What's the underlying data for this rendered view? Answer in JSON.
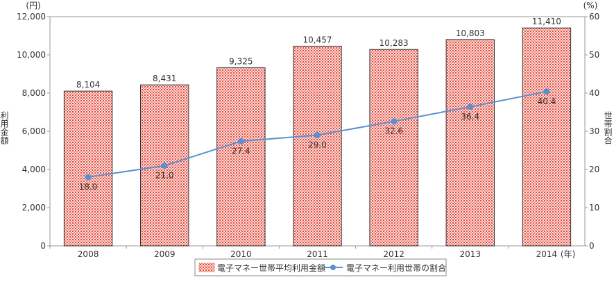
{
  "chart_data": {
    "type": "bar+line",
    "categories": [
      "2008",
      "2009",
      "2010",
      "2011",
      "2012",
      "2013",
      "2014"
    ],
    "x_unit_suffix": "(年)",
    "series": [
      {
        "name": "電子マネー世帯平均利用金額",
        "type": "bar",
        "axis": "left",
        "values": [
          8104,
          8431,
          9325,
          10457,
          10283,
          10803,
          11410
        ],
        "labels": [
          "8,104",
          "8,431",
          "9,325",
          "10,457",
          "10,283",
          "10,803",
          "11,410"
        ],
        "color": "#e8463a"
      },
      {
        "name": "電子マネー利用世帯の割合",
        "type": "line",
        "axis": "right",
        "values": [
          18.0,
          21.0,
          27.4,
          29.0,
          32.6,
          36.4,
          40.4
        ],
        "labels": [
          "18.0",
          "21.0",
          "27.4",
          "29.0",
          "32.6",
          "36.4",
          "40.4"
        ],
        "color": "#5b8fd0"
      }
    ],
    "y_left": {
      "label": "利用金額",
      "unit": "(円)",
      "range": [
        0,
        12000
      ],
      "ticks": [
        "0",
        "2,000",
        "4,000",
        "6,000",
        "8,000",
        "10,000",
        "12,000"
      ]
    },
    "y_right": {
      "label": "世帯割合",
      "unit": "(%)",
      "range": [
        0,
        60
      ],
      "ticks": [
        "0",
        "10",
        "20",
        "30",
        "40",
        "50",
        "60"
      ]
    },
    "grid": false,
    "legend": "bottom-center"
  }
}
